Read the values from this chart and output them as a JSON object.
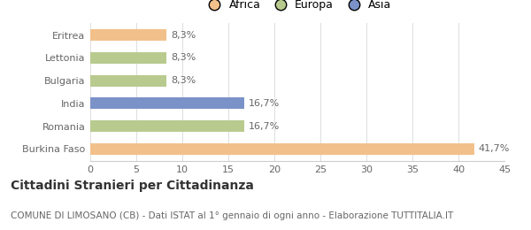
{
  "categories": [
    "Burkina Faso",
    "Romania",
    "India",
    "Bulgaria",
    "Lettonia",
    "Eritrea"
  ],
  "values": [
    41.7,
    16.7,
    16.7,
    8.3,
    8.3,
    8.3
  ],
  "labels": [
    "41,7%",
    "16,7%",
    "16,7%",
    "8,3%",
    "8,3%",
    "8,3%"
  ],
  "colors": [
    "#f2c08a",
    "#b8ca8e",
    "#7b92c9",
    "#b8ca8e",
    "#b8ca8e",
    "#f2c08a"
  ],
  "legend_items": [
    {
      "label": "Africa",
      "color": "#f2c08a"
    },
    {
      "label": "Europa",
      "color": "#b8ca8e"
    },
    {
      "label": "Asia",
      "color": "#7b92c9"
    }
  ],
  "xlim": [
    0,
    45
  ],
  "xticks": [
    0,
    5,
    10,
    15,
    20,
    25,
    30,
    35,
    40,
    45
  ],
  "title": "Cittadini Stranieri per Cittadinanza",
  "subtitle": "COMUNE DI LIMOSANO (CB) - Dati ISTAT al 1° gennaio di ogni anno - Elaborazione TUTTITALIA.IT",
  "background_color": "#ffffff",
  "bar_height": 0.5,
  "title_fontsize": 10,
  "subtitle_fontsize": 7.5,
  "label_fontsize": 8,
  "tick_fontsize": 8
}
